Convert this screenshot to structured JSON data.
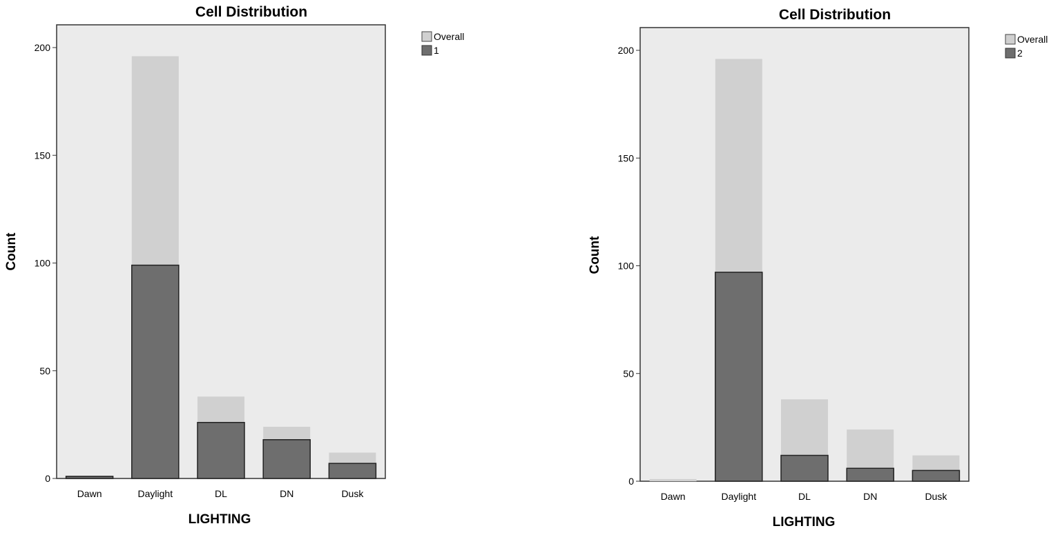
{
  "chart_data": [
    {
      "type": "bar",
      "title": "Cell Distribution",
      "xlabel": "LIGHTING",
      "ylabel": "Count",
      "categories": [
        "Dawn",
        "Daylight",
        "DL",
        "DN",
        "Dusk"
      ],
      "series": [
        {
          "name": "Overall",
          "values": [
            1,
            196,
            38,
            24,
            12
          ],
          "color": "#d0d0d0"
        },
        {
          "name": "1",
          "values": [
            1,
            99,
            26,
            18,
            7
          ],
          "color": "#6e6e6e"
        }
      ],
      "yticks": [
        0,
        50,
        100,
        150,
        200
      ],
      "ylim": [
        0,
        210
      ],
      "legend_position": "top-right, outside plot",
      "plot_background": "#ebebeb",
      "grid": false
    },
    {
      "type": "bar",
      "title": "Cell Distribution",
      "xlabel": "LIGHTING",
      "ylabel": "Count",
      "categories": [
        "Dawn",
        "Daylight",
        "DL",
        "DN",
        "Dusk"
      ],
      "series": [
        {
          "name": "Overall",
          "values": [
            1,
            196,
            38,
            24,
            12
          ],
          "color": "#d0d0d0"
        },
        {
          "name": "2",
          "values": [
            0,
            97,
            12,
            6,
            5
          ],
          "color": "#6e6e6e"
        }
      ],
      "yticks": [
        0,
        50,
        100,
        150,
        200
      ],
      "ylim": [
        0,
        210
      ],
      "legend_position": "top-right, outside plot",
      "plot_background": "#ebebeb",
      "grid": false
    }
  ]
}
